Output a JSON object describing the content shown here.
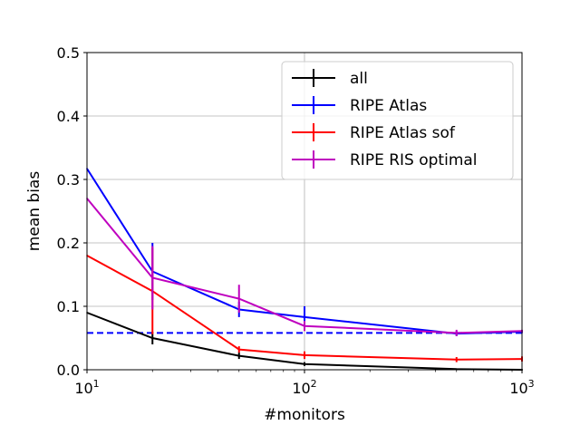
{
  "chart_data": {
    "type": "line",
    "xlabel": "#monitors",
    "ylabel": "mean bias",
    "xscale": "log",
    "xlim": [
      10,
      1000
    ],
    "ylim": [
      0,
      0.5
    ],
    "grid": true,
    "legend_position": "top-right",
    "x_ticks": [
      {
        "value": 10,
        "base": "10",
        "exp": "1"
      },
      {
        "value": 100,
        "base": "10",
        "exp": "2"
      },
      {
        "value": 1000,
        "base": "10",
        "exp": "3"
      }
    ],
    "y_ticks": [
      {
        "value": 0.0,
        "label": "0.0"
      },
      {
        "value": 0.1,
        "label": "0.1"
      },
      {
        "value": 0.2,
        "label": "0.2"
      },
      {
        "value": 0.3,
        "label": "0.3"
      },
      {
        "value": 0.4,
        "label": "0.4"
      },
      {
        "value": 0.5,
        "label": "0.5"
      }
    ],
    "reference_line": {
      "y": 0.058,
      "color": "#0000ff",
      "style": "dashed"
    },
    "series": [
      {
        "name": "all",
        "color": "#000000",
        "points": [
          {
            "x": 10,
            "y": 0.09,
            "err": 0
          },
          {
            "x": 20,
            "y": 0.05,
            "err": 0.01
          },
          {
            "x": 50,
            "y": 0.022,
            "err": 0.005
          },
          {
            "x": 100,
            "y": 0.009,
            "err": 0.003
          },
          {
            "x": 500,
            "y": 0.001,
            "err": 0.001
          },
          {
            "x": 1000,
            "y": 0.0,
            "err": 0.001
          }
        ]
      },
      {
        "name": "RIPE Atlas",
        "color": "#0000ff",
        "points": [
          {
            "x": 10,
            "y": 0.317,
            "err": 0
          },
          {
            "x": 20,
            "y": 0.155,
            "err": 0.045
          },
          {
            "x": 50,
            "y": 0.095,
            "err": 0.012
          },
          {
            "x": 100,
            "y": 0.083,
            "err": 0.017
          },
          {
            "x": 500,
            "y": 0.057,
            "err": 0.004
          },
          {
            "x": 1000,
            "y": 0.06,
            "err": 0.002
          }
        ]
      },
      {
        "name": "RIPE Atlas sof",
        "color": "#ff0000",
        "points": [
          {
            "x": 10,
            "y": 0.18,
            "err": 0
          },
          {
            "x": 20,
            "y": 0.124,
            "err": 0.068
          },
          {
            "x": 50,
            "y": 0.032,
            "err": 0.005
          },
          {
            "x": 100,
            "y": 0.023,
            "err": 0.006
          },
          {
            "x": 500,
            "y": 0.016,
            "err": 0.004
          },
          {
            "x": 1000,
            "y": 0.017,
            "err": 0.004
          }
        ]
      },
      {
        "name": "RIPE RIS optimal",
        "color": "#bf00bf",
        "points": [
          {
            "x": 10,
            "y": 0.27,
            "err": 0
          },
          {
            "x": 20,
            "y": 0.145,
            "err": 0.05
          },
          {
            "x": 50,
            "y": 0.112,
            "err": 0.022
          },
          {
            "x": 100,
            "y": 0.069,
            "err": 0.008
          },
          {
            "x": 500,
            "y": 0.058,
            "err": 0.005
          },
          {
            "x": 1000,
            "y": 0.061,
            "err": 0.002
          }
        ]
      }
    ]
  }
}
